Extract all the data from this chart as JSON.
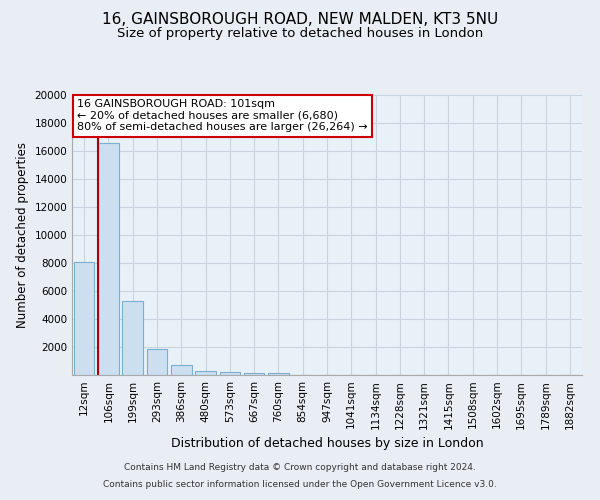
{
  "title": "16, GAINSBOROUGH ROAD, NEW MALDEN, KT3 5NU",
  "subtitle": "Size of property relative to detached houses in London",
  "xlabel": "Distribution of detached houses by size in London",
  "ylabel": "Number of detached properties",
  "categories": [
    "12sqm",
    "106sqm",
    "199sqm",
    "293sqm",
    "386sqm",
    "480sqm",
    "573sqm",
    "667sqm",
    "760sqm",
    "854sqm",
    "947sqm",
    "1041sqm",
    "1134sqm",
    "1228sqm",
    "1321sqm",
    "1415sqm",
    "1508sqm",
    "1602sqm",
    "1695sqm",
    "1789sqm",
    "1882sqm"
  ],
  "values": [
    8100,
    16600,
    5300,
    1850,
    700,
    320,
    220,
    170,
    120,
    0,
    0,
    0,
    0,
    0,
    0,
    0,
    0,
    0,
    0,
    0,
    0
  ],
  "bar_color": "#ccdff0",
  "bar_edge_color": "#7aafcf",
  "marker_line_color": "#aa0000",
  "annotation_line1": "16 GAINSBOROUGH ROAD: 101sqm",
  "annotation_line2": "← 20% of detached houses are smaller (6,680)",
  "annotation_line3": "80% of semi-detached houses are larger (26,264) →",
  "annotation_box_color": "#ffffff",
  "annotation_box_edge": "#cc0000",
  "ylim": [
    0,
    20000
  ],
  "yticks": [
    0,
    2000,
    4000,
    6000,
    8000,
    10000,
    12000,
    14000,
    16000,
    18000,
    20000
  ],
  "background_color": "#e8eef4",
  "plot_bg_color": "#e8f0f8",
  "grid_color": "#c8d4e0",
  "footer_line1": "Contains HM Land Registry data © Crown copyright and database right 2024.",
  "footer_line2": "Contains public sector information licensed under the Open Government Licence v3.0.",
  "title_fontsize": 11,
  "subtitle_fontsize": 9.5,
  "ylabel_fontsize": 8.5,
  "xlabel_fontsize": 9,
  "tick_fontsize": 7.5,
  "annotation_fontsize": 8,
  "footer_fontsize": 6.5
}
